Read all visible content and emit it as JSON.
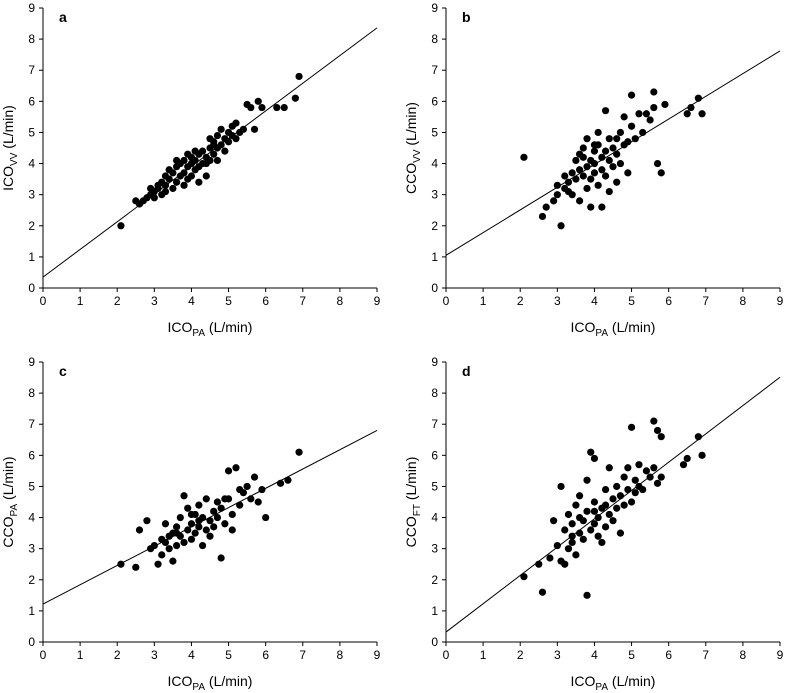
{
  "chart_data": [
    {
      "type": "scatter",
      "panel_label": "a",
      "xlabel": {
        "main": "ICO",
        "sub": "PA",
        "unit": " (L/min)"
      },
      "ylabel": {
        "main": "ICO",
        "sub": "VV",
        "unit": " (L/min)"
      },
      "xlim": [
        0,
        9
      ],
      "ylim": [
        0,
        9
      ],
      "xticks": [
        "0",
        "1",
        "2",
        "3",
        "4",
        "5",
        "6",
        "7",
        "8",
        "9"
      ],
      "yticks": [
        "0",
        "1",
        "2",
        "3",
        "4",
        "5",
        "6",
        "7",
        "8",
        "9"
      ],
      "regression": {
        "intercept": 0.35,
        "slope": 0.89
      },
      "points": [
        [
          2.1,
          2.0
        ],
        [
          2.5,
          2.8
        ],
        [
          2.6,
          2.7
        ],
        [
          2.7,
          2.8
        ],
        [
          2.8,
          2.9
        ],
        [
          2.9,
          3.0
        ],
        [
          3.0,
          2.9
        ],
        [
          3.0,
          3.1
        ],
        [
          3.1,
          3.2
        ],
        [
          3.2,
          3.0
        ],
        [
          3.2,
          3.4
        ],
        [
          3.3,
          3.1
        ],
        [
          3.3,
          3.3
        ],
        [
          3.4,
          3.5
        ],
        [
          3.5,
          3.2
        ],
        [
          3.5,
          3.7
        ],
        [
          3.6,
          3.4
        ],
        [
          3.6,
          3.9
        ],
        [
          3.7,
          3.6
        ],
        [
          3.7,
          4.0
        ],
        [
          3.8,
          3.3
        ],
        [
          3.8,
          3.7
        ],
        [
          3.8,
          4.1
        ],
        [
          3.9,
          3.5
        ],
        [
          3.9,
          3.9
        ],
        [
          4.0,
          3.6
        ],
        [
          4.0,
          4.0
        ],
        [
          4.0,
          4.2
        ],
        [
          4.1,
          3.8
        ],
        [
          4.1,
          4.1
        ],
        [
          4.2,
          3.9
        ],
        [
          4.2,
          4.3
        ],
        [
          4.2,
          3.4
        ],
        [
          4.3,
          4.0
        ],
        [
          4.3,
          4.4
        ],
        [
          4.4,
          4.2
        ],
        [
          4.4,
          3.6
        ],
        [
          4.5,
          4.1
        ],
        [
          4.5,
          4.5
        ],
        [
          4.5,
          4.8
        ],
        [
          4.6,
          4.3
        ],
        [
          4.6,
          4.7
        ],
        [
          4.7,
          4.5
        ],
        [
          4.7,
          4.9
        ],
        [
          4.7,
          4.1
        ],
        [
          4.8,
          4.6
        ],
        [
          4.8,
          5.1
        ],
        [
          4.9,
          4.4
        ],
        [
          4.9,
          4.8
        ],
        [
          5.0,
          4.7
        ],
        [
          5.0,
          5.0
        ],
        [
          5.1,
          4.9
        ],
        [
          5.1,
          5.2
        ],
        [
          5.2,
          4.8
        ],
        [
          5.2,
          5.3
        ],
        [
          5.3,
          5.0
        ],
        [
          5.4,
          5.1
        ],
        [
          5.5,
          5.9
        ],
        [
          5.6,
          5.8
        ],
        [
          5.7,
          5.1
        ],
        [
          5.8,
          6.0
        ],
        [
          5.9,
          5.8
        ],
        [
          6.3,
          5.8
        ],
        [
          6.5,
          5.8
        ],
        [
          6.8,
          6.1
        ],
        [
          6.9,
          6.8
        ],
        [
          3.4,
          3.8
        ],
        [
          3.6,
          4.1
        ],
        [
          3.9,
          4.3
        ],
        [
          4.1,
          4.4
        ],
        [
          4.4,
          4.0
        ],
        [
          4.6,
          4.6
        ],
        [
          3.1,
          3.3
        ],
        [
          2.9,
          3.2
        ],
        [
          3.3,
          3.6
        ]
      ]
    },
    {
      "type": "scatter",
      "panel_label": "b",
      "xlabel": {
        "main": "ICO",
        "sub": "PA",
        "unit": " (L/min)"
      },
      "ylabel": {
        "main": "CCO",
        "sub": "VV",
        "unit": " (L/min)"
      },
      "xlim": [
        0,
        9
      ],
      "ylim": [
        0,
        9
      ],
      "xticks": [
        "0",
        "1",
        "2",
        "3",
        "4",
        "5",
        "6",
        "7",
        "8",
        "9"
      ],
      "yticks": [
        "0",
        "1",
        "2",
        "3",
        "4",
        "5",
        "6",
        "7",
        "8",
        "9"
      ],
      "regression": {
        "intercept": 1.05,
        "slope": 0.73
      },
      "points": [
        [
          2.1,
          4.2
        ],
        [
          2.6,
          2.3
        ],
        [
          2.7,
          2.6
        ],
        [
          2.9,
          2.8
        ],
        [
          3.0,
          3.3
        ],
        [
          3.0,
          3.0
        ],
        [
          3.1,
          2.0
        ],
        [
          3.2,
          3.2
        ],
        [
          3.3,
          3.4
        ],
        [
          3.3,
          3.1
        ],
        [
          3.4,
          3.7
        ],
        [
          3.4,
          3.0
        ],
        [
          3.5,
          3.5
        ],
        [
          3.5,
          4.1
        ],
        [
          3.6,
          3.8
        ],
        [
          3.6,
          4.3
        ],
        [
          3.6,
          2.8
        ],
        [
          3.7,
          3.6
        ],
        [
          3.7,
          4.5
        ],
        [
          3.8,
          3.9
        ],
        [
          3.8,
          4.8
        ],
        [
          3.8,
          3.2
        ],
        [
          3.9,
          4.1
        ],
        [
          3.9,
          3.5
        ],
        [
          3.9,
          2.6
        ],
        [
          4.0,
          4.4
        ],
        [
          4.0,
          4.0
        ],
        [
          4.0,
          3.7
        ],
        [
          4.1,
          4.6
        ],
        [
          4.1,
          5.0
        ],
        [
          4.1,
          3.3
        ],
        [
          4.2,
          4.2
        ],
        [
          4.2,
          2.6
        ],
        [
          4.2,
          3.8
        ],
        [
          4.3,
          4.4
        ],
        [
          4.3,
          5.7
        ],
        [
          4.3,
          3.6
        ],
        [
          4.4,
          4.1
        ],
        [
          4.4,
          3.1
        ],
        [
          4.5,
          4.5
        ],
        [
          4.5,
          3.9
        ],
        [
          4.6,
          4.8
        ],
        [
          4.6,
          4.3
        ],
        [
          4.6,
          3.4
        ],
        [
          4.7,
          5.0
        ],
        [
          4.7,
          4.0
        ],
        [
          4.8,
          4.6
        ],
        [
          4.8,
          5.5
        ],
        [
          4.9,
          4.7
        ],
        [
          4.9,
          3.7
        ],
        [
          5.0,
          5.2
        ],
        [
          5.0,
          6.2
        ],
        [
          5.1,
          4.8
        ],
        [
          5.2,
          5.6
        ],
        [
          5.3,
          5.0
        ],
        [
          5.4,
          5.6
        ],
        [
          5.5,
          5.4
        ],
        [
          5.6,
          6.3
        ],
        [
          5.6,
          5.8
        ],
        [
          5.7,
          4.0
        ],
        [
          5.8,
          3.7
        ],
        [
          5.9,
          5.9
        ],
        [
          6.5,
          5.6
        ],
        [
          6.6,
          5.8
        ],
        [
          6.8,
          6.1
        ],
        [
          6.9,
          5.6
        ],
        [
          3.2,
          3.6
        ],
        [
          3.7,
          4.2
        ],
        [
          4.4,
          4.8
        ],
        [
          4.0,
          4.6
        ]
      ]
    },
    {
      "type": "scatter",
      "panel_label": "c",
      "xlabel": {
        "main": "ICO",
        "sub": "PA",
        "unit": " (L/min)"
      },
      "ylabel": {
        "main": "CCO",
        "sub": "PA",
        "unit": " (L/min)"
      },
      "xlim": [
        0,
        9
      ],
      "ylim": [
        0,
        9
      ],
      "xticks": [
        "0",
        "1",
        "2",
        "3",
        "4",
        "5",
        "6",
        "7",
        "8",
        "9"
      ],
      "yticks": [
        "0",
        "1",
        "2",
        "3",
        "4",
        "5",
        "6",
        "7",
        "8",
        "9"
      ],
      "regression": {
        "intercept": 1.22,
        "slope": 0.62
      },
      "points": [
        [
          2.1,
          2.5
        ],
        [
          2.5,
          2.4
        ],
        [
          2.6,
          3.6
        ],
        [
          2.8,
          3.9
        ],
        [
          2.9,
          3.0
        ],
        [
          3.0,
          3.1
        ],
        [
          3.1,
          2.5
        ],
        [
          3.2,
          3.3
        ],
        [
          3.2,
          2.8
        ],
        [
          3.3,
          3.2
        ],
        [
          3.3,
          3.8
        ],
        [
          3.4,
          3.0
        ],
        [
          3.5,
          3.5
        ],
        [
          3.5,
          2.6
        ],
        [
          3.6,
          3.7
        ],
        [
          3.6,
          3.1
        ],
        [
          3.7,
          3.4
        ],
        [
          3.7,
          4.0
        ],
        [
          3.8,
          4.7
        ],
        [
          3.8,
          3.2
        ],
        [
          3.9,
          3.6
        ],
        [
          3.9,
          4.3
        ],
        [
          4.0,
          3.3
        ],
        [
          4.0,
          3.8
        ],
        [
          4.1,
          4.1
        ],
        [
          4.1,
          3.5
        ],
        [
          4.2,
          4.4
        ],
        [
          4.2,
          3.7
        ],
        [
          4.3,
          4.0
        ],
        [
          4.3,
          3.1
        ],
        [
          4.4,
          3.6
        ],
        [
          4.4,
          4.6
        ],
        [
          4.5,
          3.9
        ],
        [
          4.5,
          3.4
        ],
        [
          4.6,
          4.2
        ],
        [
          4.6,
          3.7
        ],
        [
          4.7,
          4.5
        ],
        [
          4.7,
          4.0
        ],
        [
          4.8,
          2.7
        ],
        [
          4.8,
          4.3
        ],
        [
          4.9,
          3.8
        ],
        [
          5.0,
          4.6
        ],
        [
          5.0,
          5.5
        ],
        [
          5.1,
          4.1
        ],
        [
          5.1,
          3.6
        ],
        [
          5.2,
          5.6
        ],
        [
          5.3,
          4.4
        ],
        [
          5.4,
          4.8
        ],
        [
          5.5,
          5.0
        ],
        [
          5.6,
          4.6
        ],
        [
          5.7,
          5.3
        ],
        [
          5.8,
          4.5
        ],
        [
          5.9,
          4.9
        ],
        [
          6.0,
          4.0
        ],
        [
          6.4,
          5.1
        ],
        [
          6.6,
          5.2
        ],
        [
          6.9,
          6.1
        ],
        [
          3.6,
          3.5
        ],
        [
          4.0,
          4.1
        ],
        [
          4.2,
          3.9
        ],
        [
          3.4,
          3.4
        ],
        [
          4.9,
          4.6
        ],
        [
          5.3,
          4.9
        ]
      ]
    },
    {
      "type": "scatter",
      "panel_label": "d",
      "xlabel": {
        "main": "ICO",
        "sub": "PA",
        "unit": " (L/min)"
      },
      "ylabel": {
        "main": "CCO",
        "sub": "FT",
        "unit": " (L/min)"
      },
      "xlim": [
        0,
        9
      ],
      "ylim": [
        0,
        9
      ],
      "xticks": [
        "0",
        "1",
        "2",
        "3",
        "4",
        "5",
        "6",
        "7",
        "8",
        "9"
      ],
      "yticks": [
        "0",
        "1",
        "2",
        "3",
        "4",
        "5",
        "6",
        "7",
        "8",
        "9"
      ],
      "regression": {
        "intercept": 0.32,
        "slope": 0.91
      },
      "points": [
        [
          2.1,
          2.1
        ],
        [
          2.5,
          2.5
        ],
        [
          2.6,
          1.6
        ],
        [
          2.8,
          2.7
        ],
        [
          2.9,
          3.9
        ],
        [
          3.0,
          3.1
        ],
        [
          3.1,
          2.6
        ],
        [
          3.1,
          5.0
        ],
        [
          3.2,
          3.6
        ],
        [
          3.2,
          2.5
        ],
        [
          3.3,
          4.1
        ],
        [
          3.3,
          3.0
        ],
        [
          3.4,
          3.8
        ],
        [
          3.4,
          3.2
        ],
        [
          3.5,
          4.4
        ],
        [
          3.5,
          2.8
        ],
        [
          3.6,
          3.5
        ],
        [
          3.6,
          4.7
        ],
        [
          3.7,
          3.9
        ],
        [
          3.7,
          3.3
        ],
        [
          3.8,
          1.5
        ],
        [
          3.8,
          4.2
        ],
        [
          3.8,
          5.2
        ],
        [
          3.9,
          3.6
        ],
        [
          3.9,
          6.1
        ],
        [
          4.0,
          3.8
        ],
        [
          4.0,
          4.5
        ],
        [
          4.0,
          5.9
        ],
        [
          4.1,
          3.4
        ],
        [
          4.1,
          4.0
        ],
        [
          4.2,
          4.3
        ],
        [
          4.2,
          3.2
        ],
        [
          4.3,
          4.9
        ],
        [
          4.3,
          3.7
        ],
        [
          4.4,
          4.1
        ],
        [
          4.4,
          5.6
        ],
        [
          4.5,
          4.6
        ],
        [
          4.5,
          3.9
        ],
        [
          4.6,
          5.0
        ],
        [
          4.6,
          4.3
        ],
        [
          4.7,
          4.7
        ],
        [
          4.7,
          3.5
        ],
        [
          4.8,
          5.3
        ],
        [
          4.8,
          4.4
        ],
        [
          4.9,
          4.9
        ],
        [
          4.9,
          5.6
        ],
        [
          5.0,
          6.9
        ],
        [
          5.0,
          4.5
        ],
        [
          5.1,
          5.2
        ],
        [
          5.1,
          4.8
        ],
        [
          5.2,
          5.7
        ],
        [
          5.2,
          5.0
        ],
        [
          5.3,
          4.9
        ],
        [
          5.4,
          5.5
        ],
        [
          5.5,
          5.3
        ],
        [
          5.6,
          7.1
        ],
        [
          5.6,
          5.6
        ],
        [
          5.7,
          6.8
        ],
        [
          5.7,
          5.1
        ],
        [
          5.8,
          6.6
        ],
        [
          5.8,
          5.3
        ],
        [
          6.4,
          5.7
        ],
        [
          6.5,
          5.9
        ],
        [
          6.8,
          6.6
        ],
        [
          6.9,
          6.0
        ],
        [
          3.6,
          4.0
        ],
        [
          4.0,
          4.2
        ],
        [
          4.3,
          4.4
        ],
        [
          3.4,
          3.4
        ]
      ]
    }
  ]
}
